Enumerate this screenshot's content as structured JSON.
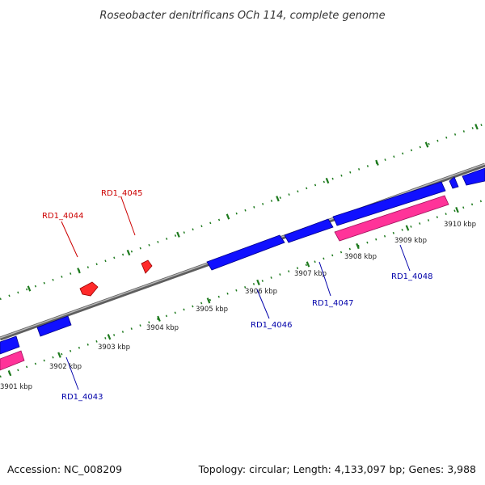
{
  "title": "Roseobacter denitrificans OCh 114, complete genome",
  "footer": {
    "accession": "Accession: NC_008209",
    "summary": "Topology: circular; Length: 4,133,097 bp; Genes: 3,988"
  },
  "colors": {
    "backbone": "#888888",
    "ticks": "#1e7a1e",
    "forward_gene": "#1010ff",
    "reverse_gene": "#ff3399",
    "forward_label": "#cc0000",
    "reverse_label": "#0000aa",
    "small_feature": "#ff2a2a"
  },
  "ruler": {
    "labels": [
      "3901 kbp",
      "3902 kbp",
      "3903 kbp",
      "3904 kbp",
      "3905 kbp",
      "3906 kbp",
      "3907 kbp",
      "3908 kbp",
      "3909 kbp",
      "3910 kbp"
    ]
  },
  "gene_labels": {
    "rd1_4043": "RD1_4043",
    "rd1_4044": "RD1_4044",
    "rd1_4045": "RD1_4045",
    "rd1_4046": "RD1_4046",
    "rd1_4047": "RD1_4047",
    "rd1_4048": "RD1_4048"
  }
}
